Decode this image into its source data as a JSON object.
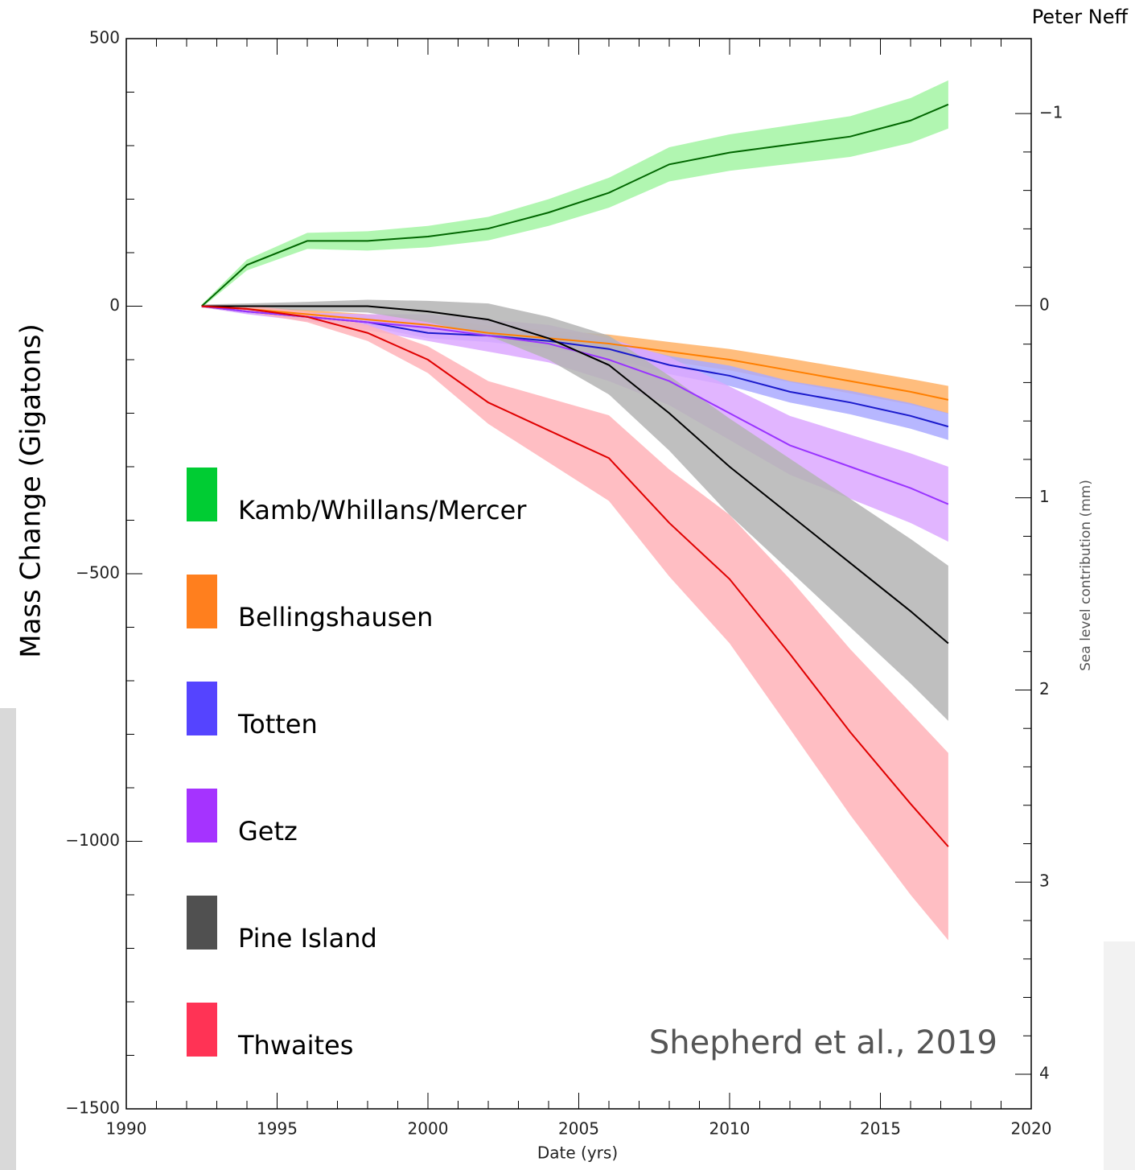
{
  "chart_data": {
    "type": "line",
    "annotations": {
      "author": "Peter Neff",
      "source": "Shepherd et al., 2019"
    },
    "x_label": "Date (yrs)",
    "y_label": "Mass Change (Gigatons)",
    "y2_label": "Sea level contribution (mm)",
    "xlim": [
      1990,
      2020
    ],
    "xticks": [
      1990,
      1995,
      2000,
      2005,
      2010,
      2015,
      2020
    ],
    "ylim": [
      -1500,
      500
    ],
    "yticks": [
      500,
      0,
      {
        "value": -500,
        "label": "−500"
      },
      {
        "value": -1000,
        "label": "−1000"
      },
      {
        "value": -1500,
        "label": "−1500"
      }
    ],
    "y2lim": [
      -1.39,
      4.18
    ],
    "y2ticks": [
      {
        "value": -1,
        "label": "−1"
      },
      0,
      1,
      2,
      3,
      4
    ],
    "grid": false,
    "x": [
      1992.5,
      1994,
      1996,
      1998,
      2000,
      2002,
      2004,
      2006,
      2008,
      2010,
      2012,
      2014,
      2016,
      2017.25
    ],
    "series": [
      {
        "name": "Kamb/Whillans/Mercer",
        "color": "#006600",
        "band_color": "#a3f5a3",
        "swatch_color": "#00cc33",
        "values": [
          0,
          77,
          122,
          122,
          130,
          145,
          175,
          212,
          265,
          287,
          302,
          317,
          347,
          377
        ],
        "errors": [
          3,
          10,
          15,
          18,
          20,
          22,
          25,
          28,
          32,
          34,
          36,
          38,
          42,
          45
        ]
      },
      {
        "name": "Bellingshausen",
        "color": "#ff7f00",
        "band_color": "#ffb266",
        "swatch_color": "#ff7f1e",
        "values": [
          0,
          -5,
          -15,
          -25,
          -35,
          -50,
          -60,
          -70,
          -85,
          -100,
          -120,
          -140,
          -160,
          -175
        ],
        "errors": [
          2,
          5,
          8,
          10,
          12,
          14,
          15,
          17,
          18,
          20,
          22,
          23,
          24,
          26
        ]
      },
      {
        "name": "Totten",
        "color": "#1a1acc",
        "band_color": "#aaaaff",
        "swatch_color": "#5544ff",
        "values": [
          0,
          -10,
          -20,
          -30,
          -50,
          -55,
          -65,
          -80,
          -110,
          -130,
          -160,
          -180,
          -205,
          -225
        ],
        "errors": [
          2,
          4,
          6,
          8,
          10,
          12,
          14,
          15,
          17,
          19,
          20,
          22,
          24,
          25
        ]
      },
      {
        "name": "Getz",
        "color": "#9933ff",
        "band_color": "#dca8ff",
        "swatch_color": "#a533ff",
        "values": [
          0,
          -10,
          -20,
          -30,
          -40,
          -55,
          -70,
          -100,
          -140,
          -200,
          -260,
          -300,
          -340,
          -370
        ],
        "errors": [
          2,
          5,
          8,
          15,
          25,
          30,
          35,
          40,
          45,
          50,
          55,
          60,
          65,
          70
        ]
      },
      {
        "name": "Pine Island",
        "color": "#000000",
        "band_color": "#b4b4b4",
        "swatch_color": "#505050",
        "values": [
          0,
          0,
          0,
          0,
          -10,
          -25,
          -60,
          -110,
          -200,
          -300,
          -390,
          -480,
          -570,
          -630
        ],
        "errors": [
          3,
          5,
          8,
          12,
          20,
          30,
          40,
          55,
          70,
          90,
          105,
          120,
          135,
          145
        ]
      },
      {
        "name": "Thwaites",
        "color": "#e00000",
        "band_color": "#ffb3b8",
        "swatch_color": "#ff3355",
        "values": [
          0,
          -5,
          -20,
          -50,
          -100,
          -180,
          -232,
          -284,
          -405,
          -510,
          -650,
          -796,
          -930,
          -1010
        ],
        "errors": [
          3,
          6,
          10,
          15,
          25,
          40,
          60,
          80,
          100,
          120,
          140,
          155,
          170,
          175
        ]
      }
    ]
  }
}
